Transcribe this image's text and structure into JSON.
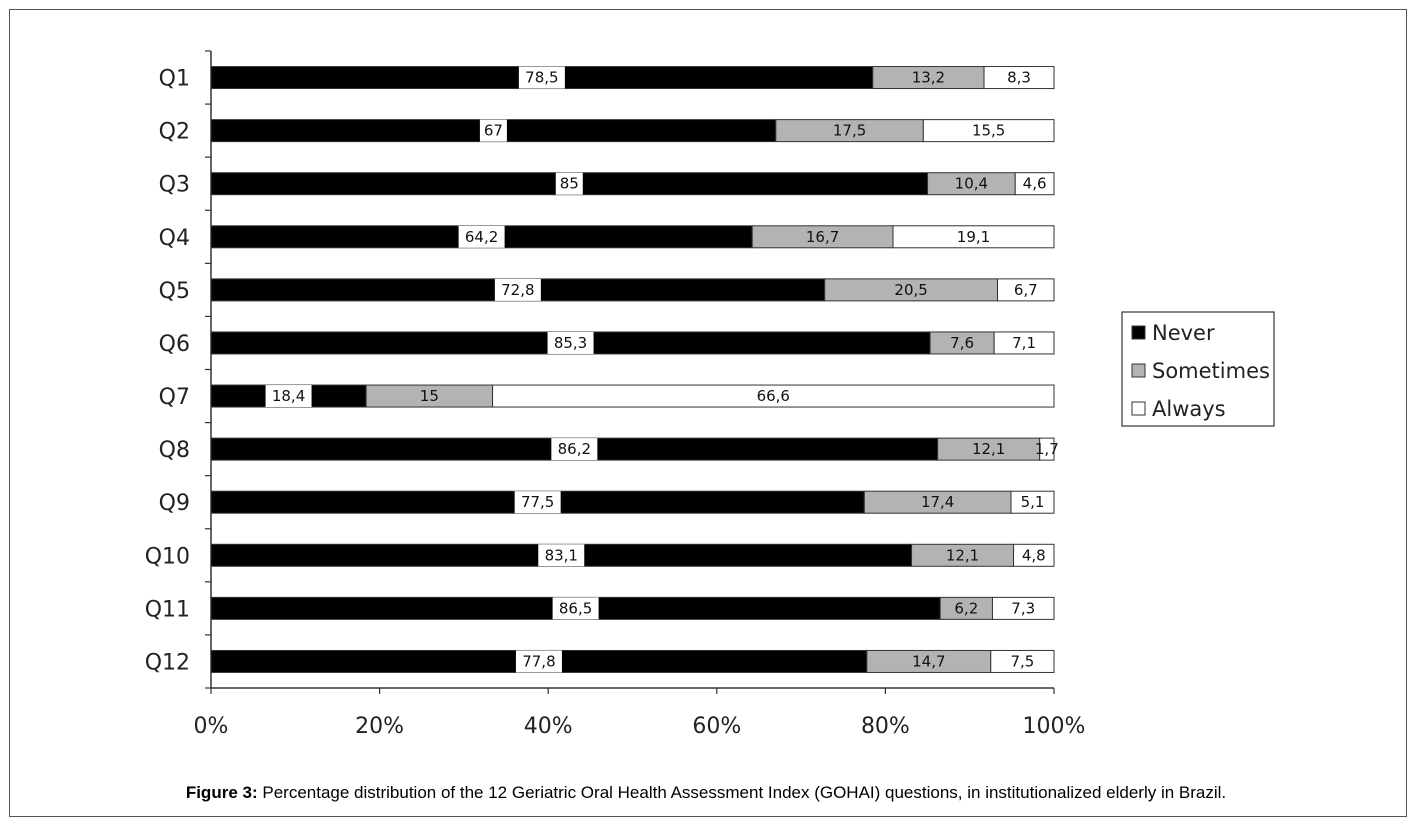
{
  "caption": {
    "prefix": "Figure 3:",
    "text": "Percentage distribution of the 12 Geriatric Oral Health Assessment Index (GOHAI) questions, in institutionalized elderly in Brazil."
  },
  "colors": {
    "never": "#000000",
    "sometimes": "#b3b3b3",
    "always": "#ffffff",
    "bar_stroke": "#333333",
    "axis": "#333333"
  },
  "chart_data": {
    "type": "bar",
    "orientation": "horizontal",
    "stacked": "percent",
    "categories": [
      "Q1",
      "Q2",
      "Q3",
      "Q4",
      "Q5",
      "Q6",
      "Q7",
      "Q8",
      "Q9",
      "Q10",
      "Q11",
      "Q12"
    ],
    "series": [
      {
        "name": "Never",
        "values": [
          78.5,
          67,
          85,
          64.2,
          72.8,
          85.3,
          18.4,
          86.2,
          77.5,
          83.1,
          86.5,
          77.8
        ],
        "labels": [
          "78,5",
          "67",
          "85",
          "64,2",
          "72,8",
          "85,3",
          "18,4",
          "86,2",
          "77,5",
          "83,1",
          "86,5",
          "77,8"
        ]
      },
      {
        "name": "Sometimes",
        "values": [
          13.2,
          17.5,
          10.4,
          16.7,
          20.5,
          7.6,
          15,
          12.1,
          17.4,
          12.1,
          6.2,
          14.7
        ],
        "labels": [
          "13,2",
          "17,5",
          "10,4",
          "16,7",
          "20,5",
          "7,6",
          "15",
          "12,1",
          "17,4",
          "12,1",
          "6,2",
          "14,7"
        ]
      },
      {
        "name": "Always",
        "values": [
          8.3,
          15.5,
          4.6,
          19.1,
          6.7,
          7.1,
          66.6,
          1.7,
          5.1,
          4.8,
          7.3,
          7.5
        ],
        "labels": [
          "8,3",
          "15,5",
          "4,6",
          "19,1",
          "6,7",
          "7,1",
          "66,6",
          "1,7",
          "5,1",
          "4,8",
          "7,3",
          "7,5"
        ]
      }
    ],
    "xticks": [
      "0%",
      "20%",
      "40%",
      "60%",
      "80%",
      "100%"
    ],
    "xlim": [
      0,
      100
    ],
    "grid": false,
    "legend": "right"
  }
}
